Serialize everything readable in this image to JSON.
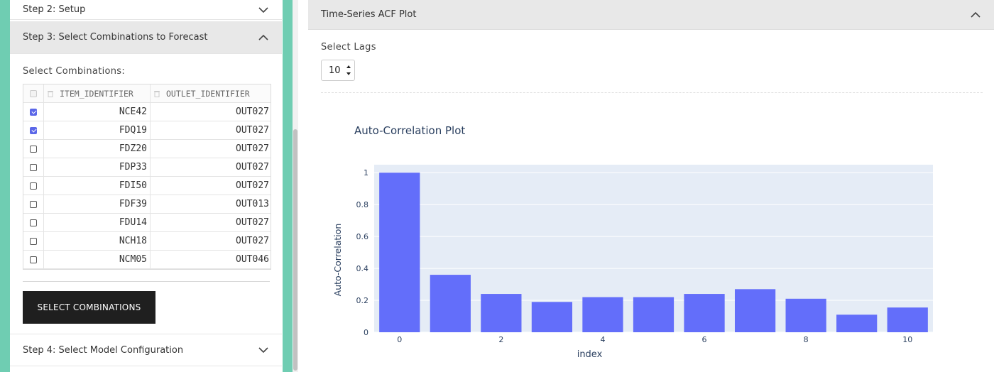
{
  "left": {
    "step2": {
      "label": "Step 2: Setup"
    },
    "step3": {
      "label": "Step 3: Select Combinations to Forecast"
    },
    "step4": {
      "label": "Step 4: Select Model Configuration"
    },
    "select_label": "Select Combinations:",
    "table": {
      "columns": [
        "ITEM_IDENTIFIER",
        "OUTLET_IDENTIFIER"
      ],
      "rows": [
        {
          "item": "NCE42",
          "outlet": "OUT027",
          "checked": true
        },
        {
          "item": "FDQ19",
          "outlet": "OUT027",
          "checked": true
        },
        {
          "item": "FDZ20",
          "outlet": "OUT027",
          "checked": false
        },
        {
          "item": "FDP33",
          "outlet": "OUT027",
          "checked": false
        },
        {
          "item": "FDI50",
          "outlet": "OUT027",
          "checked": false
        },
        {
          "item": "FDF39",
          "outlet": "OUT013",
          "checked": false
        },
        {
          "item": "FDU14",
          "outlet": "OUT027",
          "checked": false
        },
        {
          "item": "NCH18",
          "outlet": "OUT027",
          "checked": false
        },
        {
          "item": "NCM05",
          "outlet": "OUT046",
          "checked": false
        }
      ]
    },
    "button_label": "SELECT COMBINATIONS"
  },
  "right": {
    "header": "Time-Series ACF Plot",
    "lags_label": "Select Lags",
    "lags_value": "10"
  },
  "colors": {
    "accent": "#6fcdb2",
    "bar": "#636efa",
    "plot_bg": "#e5ecf6",
    "button": "#1f1f1f"
  },
  "chart_data": {
    "type": "bar",
    "title": "Auto-Correlation Plot",
    "xlabel": "index",
    "ylabel": "Auto-Correlation",
    "x": [
      0,
      1,
      2,
      3,
      4,
      5,
      6,
      7,
      8,
      9,
      10
    ],
    "values": [
      1.0,
      0.36,
      0.24,
      0.19,
      0.22,
      0.22,
      0.24,
      0.27,
      0.21,
      0.11,
      0.155
    ],
    "x_ticks": [
      "0",
      "2",
      "4",
      "6",
      "8",
      "10"
    ],
    "y_ticks": [
      "0",
      "0.2",
      "0.4",
      "0.6",
      "0.8",
      "1"
    ],
    "ylim": [
      0,
      1.05
    ],
    "grid": true
  }
}
